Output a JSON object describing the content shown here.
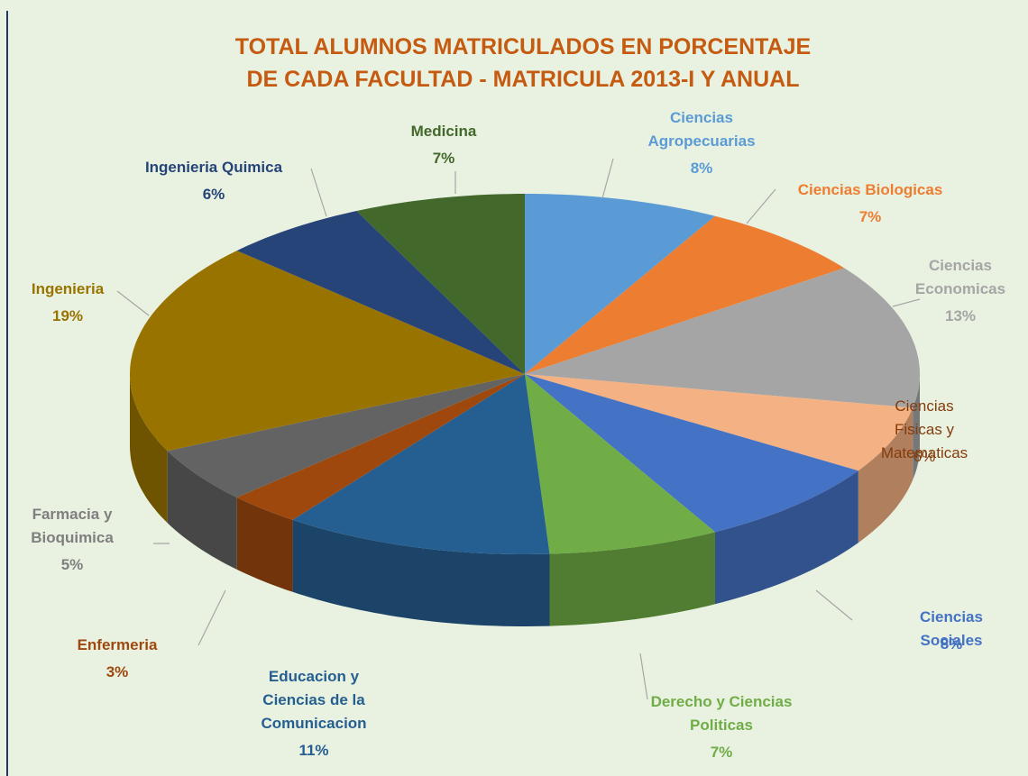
{
  "chart_data": {
    "type": "pie3d",
    "title": "TOTAL ALUMNOS MATRICULADOS EN PORCENTAJE\nDE CADA FACULTAD - MATRICULA 2013-I Y ANUAL",
    "categories": [
      "Ciencias\nAgropecuarias",
      "Ciencias  Biologicas",
      "Ciencias\nEconomicas",
      "Ciencias Fisicas y\nMatematicas",
      "Ciencias  Sociales",
      "Derecho y Ciencias\nPoliticas",
      "Educacion  y\nCiencias  de la\nComunicacion",
      "Enfermeria",
      "Farmacia  y\nBioquimica",
      "Ingenieria",
      "Ingenieria Quimica",
      "Medicina"
    ],
    "values": [
      8,
      7,
      13,
      6,
      8,
      7,
      11,
      3,
      5,
      19,
      6,
      7
    ],
    "value_labels": [
      "8%",
      "7%",
      "13%",
      "6%",
      "8%",
      "7%",
      "11%",
      "3%",
      "5%",
      "19%",
      "6%",
      "7%"
    ],
    "colors": [
      "#5b9bd5",
      "#ed7d31",
      "#a5a5a5",
      "#f4b183",
      "#4472c4",
      "#70ad47",
      "#255e91",
      "#9e480e",
      "#636363",
      "#997300",
      "#264478",
      "#43682b"
    ],
    "label_colors": [
      "#5b9bd5",
      "#ed7d31",
      "#a5a5a5",
      "#843c0c",
      "#4472c4",
      "#70ad47",
      "#255e91",
      "#9e480e",
      "#7f7f7f",
      "#997300",
      "#264478",
      "#43682b"
    ]
  }
}
